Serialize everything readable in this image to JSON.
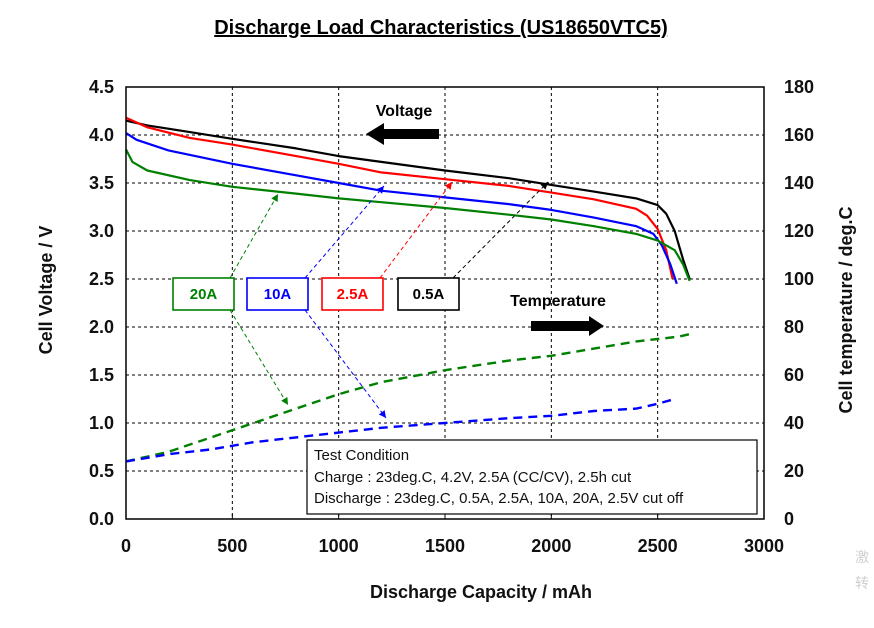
{
  "chart_data": {
    "type": "line",
    "title": "Discharge Load Characteristics (US18650VTC5)",
    "xlabel": "Discharge Capacity  /  mAh",
    "ylabel": "Cell Voltage  /  V",
    "y2label": "Cell temperature  /  deg.C",
    "xlim": [
      0,
      3000
    ],
    "ylim": [
      0,
      4.5
    ],
    "y2lim": [
      0,
      180
    ],
    "x_ticks": [
      "0",
      "500",
      "1000",
      "1500",
      "2000",
      "2500",
      "3000"
    ],
    "y_ticks": [
      "0.0",
      "0.5",
      "1.0",
      "1.5",
      "2.0",
      "2.5",
      "3.0",
      "3.5",
      "4.0",
      "4.5"
    ],
    "y2_ticks": [
      "0",
      "20",
      "40",
      "60",
      "80",
      "100",
      "120",
      "140",
      "160",
      "180"
    ],
    "grid": true,
    "voltage_series": [
      {
        "name": "0.5A",
        "color": "#000000",
        "x": [
          0,
          100,
          300,
          500,
          800,
          1000,
          1200,
          1500,
          1800,
          2000,
          2200,
          2400,
          2500,
          2540,
          2580,
          2620,
          2650
        ],
        "y": [
          4.15,
          4.1,
          4.03,
          3.96,
          3.86,
          3.78,
          3.72,
          3.63,
          3.55,
          3.48,
          3.41,
          3.34,
          3.27,
          3.18,
          3.0,
          2.7,
          2.5
        ]
      },
      {
        "name": "2.5A",
        "color": "#ff0000",
        "x": [
          0,
          100,
          300,
          500,
          800,
          1000,
          1200,
          1500,
          1800,
          2000,
          2200,
          2400,
          2450,
          2500,
          2540,
          2570
        ],
        "y": [
          4.18,
          4.08,
          3.97,
          3.9,
          3.78,
          3.7,
          3.61,
          3.54,
          3.47,
          3.4,
          3.33,
          3.23,
          3.16,
          3.02,
          2.8,
          2.5
        ]
      },
      {
        "name": "10A",
        "color": "#0000ff",
        "x": [
          0,
          50,
          200,
          500,
          800,
          1000,
          1200,
          1500,
          1800,
          2000,
          2200,
          2400,
          2480,
          2520,
          2560,
          2590
        ],
        "y": [
          4.02,
          3.95,
          3.84,
          3.7,
          3.58,
          3.5,
          3.42,
          3.35,
          3.28,
          3.22,
          3.14,
          3.05,
          2.97,
          2.85,
          2.65,
          2.45
        ]
      },
      {
        "name": "20A",
        "color": "#008000",
        "x": [
          0,
          30,
          100,
          300,
          500,
          800,
          1000,
          1200,
          1500,
          1800,
          2000,
          2200,
          2400,
          2500,
          2580,
          2620,
          2650
        ],
        "y": [
          3.85,
          3.72,
          3.63,
          3.53,
          3.46,
          3.39,
          3.34,
          3.3,
          3.24,
          3.17,
          3.12,
          3.05,
          2.97,
          2.9,
          2.8,
          2.65,
          2.48
        ]
      }
    ],
    "temperature_series": [
      {
        "name": "20A",
        "color": "#008000",
        "style": "dashed",
        "x": [
          0,
          200,
          400,
          600,
          800,
          1000,
          1200,
          1500,
          1800,
          2000,
          2200,
          2400,
          2500,
          2600,
          2650
        ],
        "y": [
          24,
          28,
          34,
          40,
          46,
          52,
          57,
          62,
          66,
          68,
          71,
          74,
          75,
          76,
          77
        ]
      },
      {
        "name": "10A",
        "color": "#0000ff",
        "style": "dashed",
        "x": [
          0,
          200,
          400,
          600,
          800,
          1000,
          1200,
          1500,
          1800,
          2000,
          2200,
          2400,
          2500,
          2580
        ],
        "y": [
          24,
          27,
          29,
          32,
          34,
          36,
          38,
          40,
          42,
          43,
          45,
          46,
          48,
          50
        ]
      }
    ],
    "legend": [
      {
        "label": "20A",
        "color": "#008000"
      },
      {
        "label": "10A",
        "color": "#0000ff"
      },
      {
        "label": "2.5A",
        "color": "#ff0000"
      },
      {
        "label": "0.5A",
        "color": "#000000"
      }
    ],
    "annotations": {
      "voltage_arrow_label": "Voltage",
      "temperature_arrow_label": "Temperature",
      "test_condition": {
        "title": "Test Condition",
        "charge": "Charge : 23deg.C, 4.2V, 2.5A (CC/CV), 2.5h cut",
        "discharge": "Discharge : 23deg.C, 0.5A, 2.5A, 10A, 20A, 2.5V cut off"
      }
    },
    "watermark": [
      "激",
      "转"
    ]
  }
}
